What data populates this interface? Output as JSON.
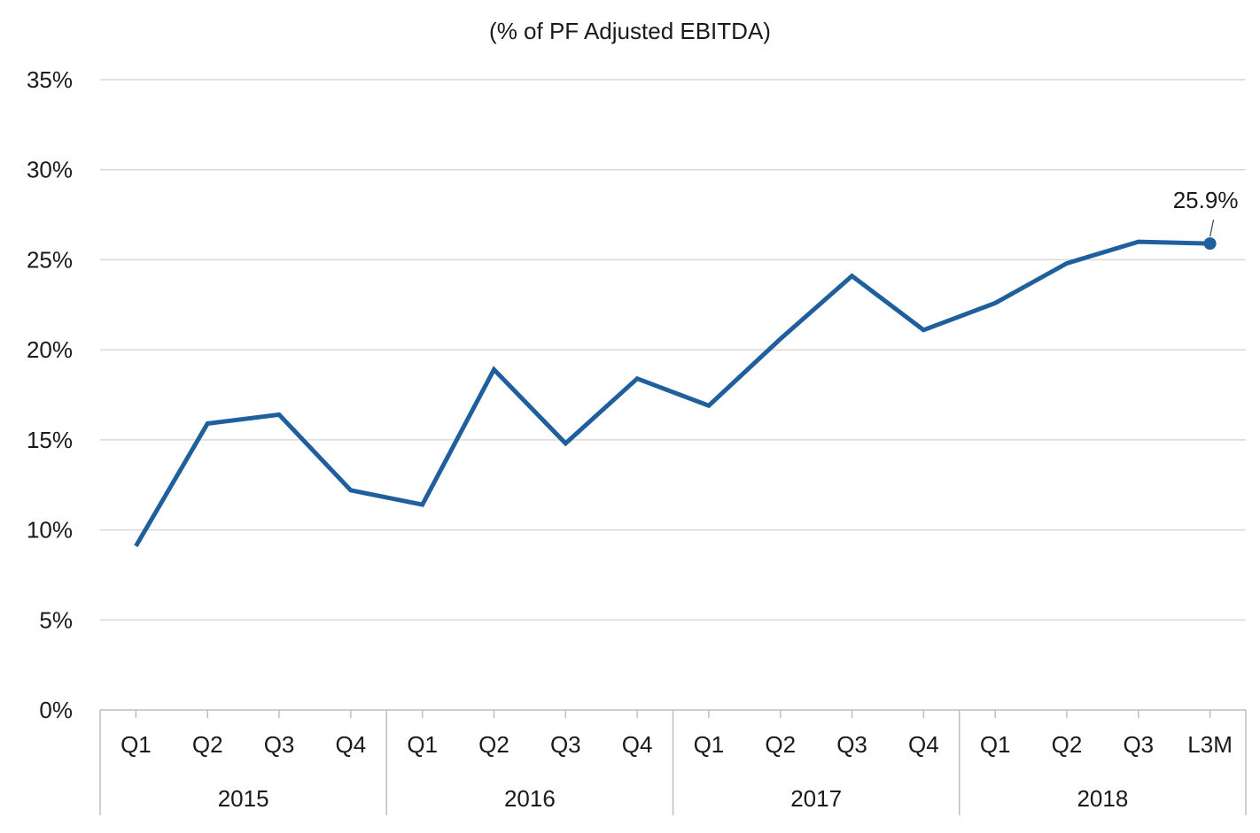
{
  "chart_data": {
    "type": "line",
    "title": "(% of PF Adjusted EBITDA)",
    "xlabel": "",
    "ylabel": "",
    "ylim": [
      0,
      35
    ],
    "yticks": [
      "0%",
      "5%",
      "10%",
      "15%",
      "20%",
      "25%",
      "30%",
      "35%"
    ],
    "grid": true,
    "legend": "none",
    "categories": [
      "Q1",
      "Q2",
      "Q3",
      "Q4",
      "Q1",
      "Q2",
      "Q3",
      "Q4",
      "Q1",
      "Q2",
      "Q3",
      "Q4",
      "Q1",
      "Q2",
      "Q3",
      "L3M"
    ],
    "groups": [
      {
        "label": "2015",
        "count": 4
      },
      {
        "label": "2016",
        "count": 4
      },
      {
        "label": "2017",
        "count": 4
      },
      {
        "label": "2018",
        "count": 4
      }
    ],
    "series": [
      {
        "values": [
          9.1,
          15.9,
          16.4,
          12.2,
          11.4,
          18.9,
          14.8,
          18.4,
          16.9,
          20.6,
          24.1,
          21.1,
          22.6,
          24.8,
          26.0,
          25.9
        ],
        "color": "#1f5f9e"
      }
    ],
    "annotations": [
      {
        "index": 15,
        "text": "25.9%"
      }
    ]
  }
}
